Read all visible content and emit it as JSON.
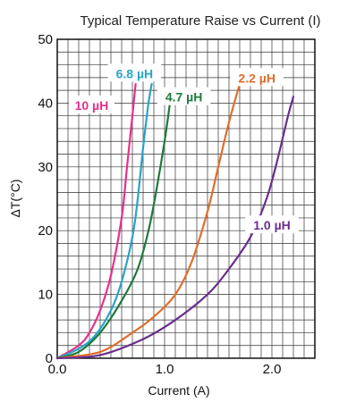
{
  "chart_data": {
    "type": "line",
    "title": "Typical Temperature Raise vs Current (I)",
    "xlabel": "Current (A)",
    "ylabel": "ΔT(°C)",
    "xlim": [
      0,
      2.4
    ],
    "ylim": [
      0,
      50
    ],
    "grid": true,
    "x_ticks": [
      {
        "value": 0.0,
        "label": "0.0"
      },
      {
        "value": 1.0,
        "label": "1.0"
      },
      {
        "value": 2.0,
        "label": "2.0"
      }
    ],
    "y_ticks": [
      {
        "value": 0,
        "label": "0"
      },
      {
        "value": 10,
        "label": "10"
      },
      {
        "value": 20,
        "label": "20"
      },
      {
        "value": 30,
        "label": "30"
      },
      {
        "value": 40,
        "label": "40"
      },
      {
        "value": 50,
        "label": "50"
      }
    ],
    "series": [
      {
        "name": "10 µH",
        "color": "#e6308a",
        "points": [
          [
            0,
            0
          ],
          [
            0.2,
            2
          ],
          [
            0.3,
            4
          ],
          [
            0.4,
            7.5
          ],
          [
            0.5,
            13
          ],
          [
            0.6,
            22
          ],
          [
            0.65,
            30
          ],
          [
            0.7,
            38
          ],
          [
            0.73,
            43
          ]
        ]
      },
      {
        "name": "6.8 µH",
        "color": "#2aa3c6",
        "points": [
          [
            0,
            0
          ],
          [
            0.2,
            1.5
          ],
          [
            0.35,
            3.5
          ],
          [
            0.5,
            7.5
          ],
          [
            0.6,
            12
          ],
          [
            0.7,
            19
          ],
          [
            0.75,
            25
          ],
          [
            0.8,
            33
          ],
          [
            0.85,
            40
          ],
          [
            0.88,
            43
          ]
        ]
      },
      {
        "name": "4.7 µH",
        "color": "#1f7a3c",
        "points": [
          [
            0,
            0
          ],
          [
            0.2,
            1
          ],
          [
            0.4,
            4
          ],
          [
            0.6,
            9
          ],
          [
            0.75,
            14
          ],
          [
            0.85,
            20
          ],
          [
            0.92,
            26
          ],
          [
            1.0,
            34
          ],
          [
            1.05,
            40
          ]
        ]
      },
      {
        "name": "2.2 µH",
        "color": "#e06d2b",
        "points": [
          [
            0,
            0
          ],
          [
            0.4,
            1
          ],
          [
            0.7,
            4
          ],
          [
            0.9,
            6.5
          ],
          [
            1.1,
            10
          ],
          [
            1.25,
            15
          ],
          [
            1.4,
            23
          ],
          [
            1.5,
            30
          ],
          [
            1.6,
            37
          ],
          [
            1.7,
            43
          ]
        ]
      },
      {
        "name": "1.0 µH",
        "color": "#6a2e8e",
        "points": [
          [
            0,
            0
          ],
          [
            0.4,
            0.5
          ],
          [
            0.8,
            3
          ],
          [
            1.1,
            6
          ],
          [
            1.4,
            10
          ],
          [
            1.6,
            14
          ],
          [
            1.8,
            19
          ],
          [
            1.95,
            25
          ],
          [
            2.05,
            31
          ],
          [
            2.15,
            38
          ],
          [
            2.2,
            41
          ]
        ]
      }
    ],
    "annotations": [
      {
        "series": "10 µH",
        "text": "10 µH",
        "x": 0.32,
        "y": 39.5
      },
      {
        "series": "6.8 µH",
        "text": "6.8 µH",
        "x": 0.72,
        "y": 44.5
      },
      {
        "series": "4.7 µH",
        "text": "4.7 µH",
        "x": 1.18,
        "y": 40.8
      },
      {
        "series": "2.2 µH",
        "text": "2.2 µH",
        "x": 1.86,
        "y": 43.8
      },
      {
        "series": "1.0 µH",
        "text": "1.0 µH",
        "x": 2.0,
        "y": 20.7
      }
    ]
  }
}
